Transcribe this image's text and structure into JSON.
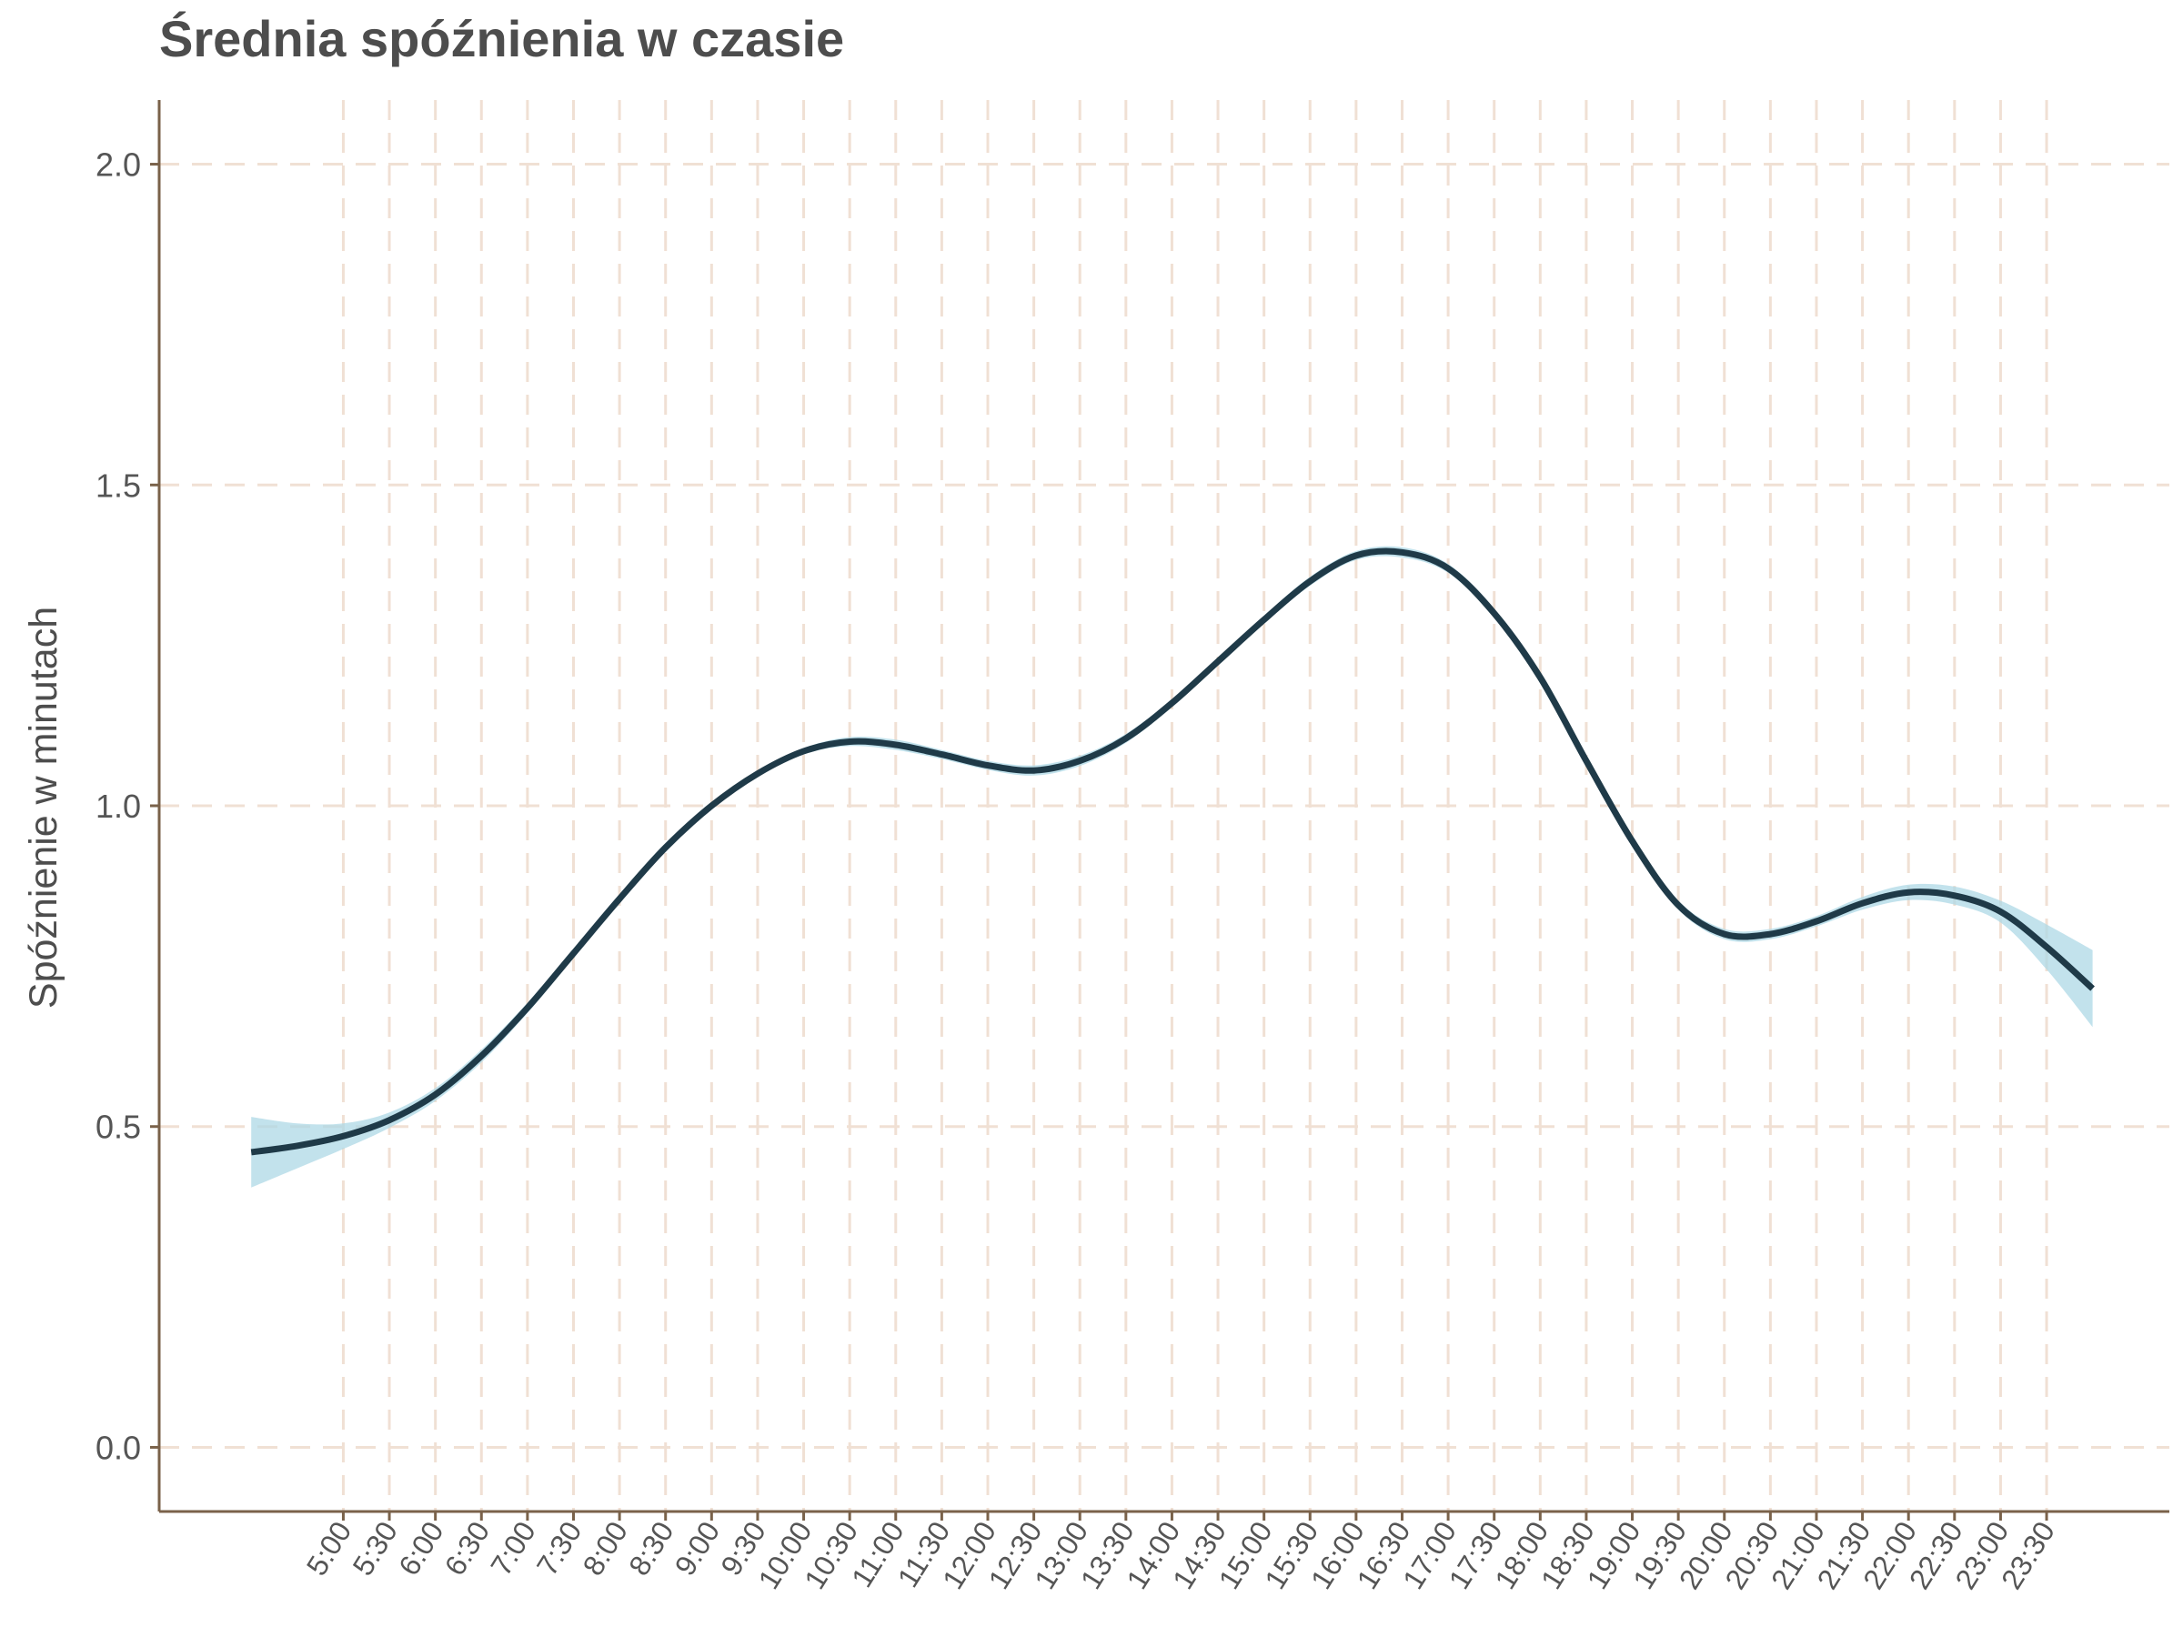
{
  "chart_data": {
    "type": "line",
    "title": "Średnia spóźnienia w czasie",
    "ylabel": "Spóźnienie w minutach",
    "xlabel": "",
    "x_tick_labels": [
      "5:00",
      "5:30",
      "6:00",
      "6:30",
      "7:00",
      "7:30",
      "8:00",
      "8:30",
      "9:00",
      "9:30",
      "10:00",
      "10:30",
      "11:00",
      "11:30",
      "12:00",
      "12:30",
      "13:00",
      "13:30",
      "14:00",
      "14:30",
      "15:00",
      "15:30",
      "16:00",
      "16:30",
      "17:00",
      "17:30",
      "18:00",
      "18:30",
      "19:00",
      "19:30",
      "20:00",
      "20:30",
      "21:00",
      "21:30",
      "22:00",
      "22:30",
      "23:00",
      "23:30"
    ],
    "y_tick_labels": [
      "0.0",
      "0.5",
      "1.0",
      "1.5",
      "2.0"
    ],
    "y_ticks": [
      0,
      0.5,
      1.0,
      1.5,
      2.0
    ],
    "ylim": [
      -0.1,
      2.1
    ],
    "xlim": [
      "3:00",
      "24:50"
    ],
    "grid": true,
    "smooth": {
      "x": [
        "4:00",
        "4:30",
        "5:00",
        "5:30",
        "6:00",
        "6:30",
        "7:00",
        "7:30",
        "8:00",
        "8:30",
        "9:00",
        "9:30",
        "10:00",
        "10:30",
        "11:00",
        "11:30",
        "12:00",
        "12:30",
        "13:00",
        "13:30",
        "14:00",
        "14:30",
        "15:00",
        "15:30",
        "16:00",
        "16:30",
        "17:00",
        "17:30",
        "18:00",
        "18:30",
        "19:00",
        "19:30",
        "20:00",
        "20:30",
        "21:00",
        "21:30",
        "22:00",
        "22:30",
        "23:00",
        "23:30",
        "24:00"
      ],
      "y": [
        0.46,
        0.47,
        0.485,
        0.51,
        0.55,
        0.61,
        0.685,
        0.77,
        0.855,
        0.935,
        1.0,
        1.05,
        1.085,
        1.1,
        1.095,
        1.08,
        1.063,
        1.055,
        1.07,
        1.105,
        1.16,
        1.225,
        1.29,
        1.35,
        1.39,
        1.395,
        1.37,
        1.3,
        1.2,
        1.07,
        0.945,
        0.845,
        0.8,
        0.8,
        0.82,
        0.848,
        0.865,
        0.86,
        0.835,
        0.78,
        0.715
      ],
      "ci_upper": [
        0.515,
        0.505,
        0.505,
        0.522,
        0.56,
        0.62,
        0.693,
        0.777,
        0.861,
        0.94,
        1.005,
        1.055,
        1.09,
        1.107,
        1.103,
        1.087,
        1.07,
        1.063,
        1.078,
        1.112,
        1.166,
        1.231,
        1.296,
        1.357,
        1.397,
        1.403,
        1.377,
        1.307,
        1.207,
        1.077,
        0.952,
        0.852,
        0.808,
        0.808,
        0.828,
        0.858,
        0.877,
        0.874,
        0.852,
        0.815,
        0.775
      ],
      "ci_lower": [
        0.405,
        0.435,
        0.465,
        0.498,
        0.54,
        0.6,
        0.677,
        0.763,
        0.849,
        0.93,
        0.995,
        1.045,
        1.08,
        1.093,
        1.087,
        1.073,
        1.056,
        1.047,
        1.062,
        1.098,
        1.154,
        1.219,
        1.284,
        1.343,
        1.383,
        1.387,
        1.363,
        1.293,
        1.193,
        1.063,
        0.938,
        0.838,
        0.792,
        0.792,
        0.812,
        0.838,
        0.853,
        0.846,
        0.818,
        0.745,
        0.655
      ]
    },
    "colors": {
      "line": "#1f3a48",
      "band": "#add8e6",
      "axis": "#7a624a",
      "grid": "#f0e0d4",
      "text": "#4d4d4d",
      "tick_text": "#555555"
    }
  }
}
